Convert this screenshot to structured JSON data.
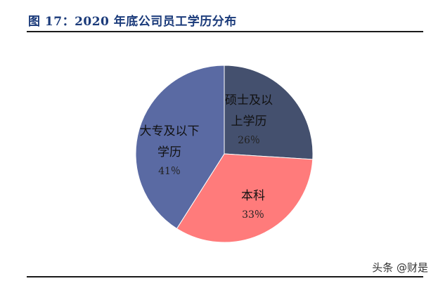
{
  "header": {
    "title": "图 17：2020 年底公司员工学历分布"
  },
  "footer": {
    "watermark": "头条 @财是"
  },
  "chart_data": {
    "type": "pie",
    "title": "图 17：2020 年底公司员工学历分布",
    "slices": [
      {
        "label_lines": [
          "硕士及以",
          "上学历"
        ],
        "pct_text": "26％",
        "value": 26,
        "color": "#44506e"
      },
      {
        "label_lines": [
          "本科"
        ],
        "pct_text": "33％",
        "value": 33,
        "color": "#ff7b7b"
      },
      {
        "label_lines": [
          "大专及以下",
          "学历"
        ],
        "pct_text": "41％",
        "value": 41,
        "color": "#5a6aa3"
      }
    ]
  }
}
